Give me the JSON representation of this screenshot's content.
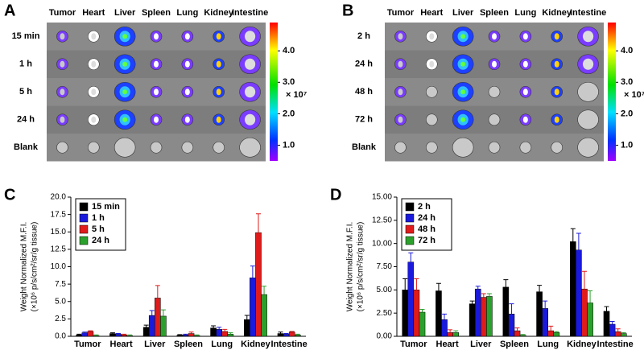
{
  "panels": [
    {
      "label": "A",
      "columns": [
        "Tumor",
        "Heart",
        "Liver",
        "Spleen",
        "Lung",
        "Kidney",
        "Intestine"
      ],
      "rows": [
        "15 min",
        "1 h",
        "5 h",
        "24 h",
        "Blank"
      ],
      "clim": [
        0.5,
        4.9
      ],
      "colorbar_ticks": [
        {
          "value": 4,
          "label": "4.0"
        },
        {
          "value": 3,
          "label": "3.0"
        },
        {
          "value": 2,
          "label": "2.0"
        },
        {
          "value": 1,
          "label": "1.0"
        }
      ],
      "colorbar_unit": "× 10⁷"
    },
    {
      "label": "B",
      "columns": [
        "Tumor",
        "Heart",
        "Liver",
        "Spleen",
        "Lung",
        "Kidney",
        "Intestine"
      ],
      "rows": [
        "2 h",
        "24 h",
        "48 h",
        "72 h",
        "Blank"
      ],
      "clim": [
        0.5,
        4.9
      ],
      "colorbar_ticks": [
        {
          "value": 4,
          "label": "4.0"
        },
        {
          "value": 3,
          "label": "3.0"
        },
        {
          "value": 2,
          "label": "2.0"
        },
        {
          "value": 1,
          "label": "1.0"
        }
      ],
      "colorbar_unit": "× 10⁷"
    }
  ],
  "chart_data": [
    {
      "type": "bar",
      "panel_label": "C",
      "y_label": [
        "Weight Normalized M.F.I.",
        "(×10⁶ p/s/cm²/sr/g tissue)"
      ],
      "categories": [
        "Tumor",
        "Heart",
        "Liver",
        "Spleen",
        "Lung",
        "Kidney",
        "Intestine"
      ],
      "ylim": [
        0,
        20
      ],
      "yticks": [
        {
          "value": 0,
          "label": "0.0"
        },
        2.5,
        {
          "value": 5,
          "label": "5.0"
        },
        7.5,
        {
          "value": 10,
          "label": "10.0"
        },
        12.5,
        {
          "value": 15,
          "label": "15.0"
        },
        17.5,
        {
          "value": 20,
          "label": "20.0"
        }
      ],
      "legend": "upper left",
      "series": [
        {
          "name": "15 min",
          "color": "#000000",
          "values": [
            0.2,
            0.4,
            1.3,
            0.15,
            1.2,
            2.4,
            0.4
          ],
          "errors": [
            0.1,
            0.1,
            0.3,
            0.1,
            0.3,
            0.6,
            0.2
          ]
        },
        {
          "name": "1 h",
          "color": "#1a1adc",
          "values": [
            0.5,
            0.3,
            3.0,
            0.2,
            1.0,
            8.4,
            0.3
          ],
          "errors": [
            0.1,
            0.1,
            0.7,
            0.1,
            0.3,
            1.7,
            0.1
          ]
        },
        {
          "name": "5 h",
          "color": "#e01b1b",
          "values": [
            0.7,
            0.2,
            5.5,
            0.4,
            0.7,
            14.9,
            0.6
          ],
          "errors": [
            0.1,
            0.1,
            1.8,
            0.2,
            0.3,
            2.7,
            0.1
          ]
        },
        {
          "name": "24 h",
          "color": "#2ca02c",
          "values": [
            0.1,
            0.1,
            2.9,
            0.1,
            0.3,
            6.0,
            0.2
          ],
          "errors": [
            0.1,
            0.1,
            0.9,
            0.1,
            0.2,
            1.2,
            0.1
          ]
        }
      ]
    },
    {
      "type": "bar",
      "panel_label": "D",
      "y_label": [
        "Weight Normalized M.F.I.",
        "(×10⁶ p/s/cm²/sr/g tissue)"
      ],
      "categories": [
        "Tumor",
        "Heart",
        "Liver",
        "Spleen",
        "Lung",
        "Kidney",
        "Intestine"
      ],
      "ylim": [
        0,
        15
      ],
      "yticks": [
        {
          "value": 0,
          "label": "0.00"
        },
        {
          "value": 2.5,
          "label": "2.50"
        },
        {
          "value": 5,
          "label": "5.00"
        },
        {
          "value": 7.5,
          "label": "7.50"
        },
        {
          "value": 10,
          "label": "10.00"
        },
        {
          "value": 12.5,
          "label": "12.50"
        },
        {
          "value": 15,
          "label": "15.00"
        }
      ],
      "legend": "upper left",
      "series": [
        {
          "name": "2 h",
          "color": "#000000",
          "values": [
            5.0,
            4.9,
            3.5,
            5.3,
            4.8,
            10.2,
            2.7
          ],
          "errors": [
            1.2,
            0.8,
            0.3,
            0.8,
            0.7,
            1.4,
            0.5
          ]
        },
        {
          "name": "24 h",
          "color": "#1a1adc",
          "values": [
            8.0,
            1.8,
            5.1,
            2.4,
            3.0,
            9.3,
            1.3
          ],
          "errors": [
            1.0,
            0.6,
            0.3,
            1.1,
            0.8,
            1.8,
            0.3
          ]
        },
        {
          "name": "48 h",
          "color": "#e01b1b",
          "values": [
            5.0,
            0.4,
            4.2,
            0.6,
            0.6,
            5.1,
            0.5
          ],
          "errors": [
            1.2,
            0.3,
            0.4,
            0.3,
            0.5,
            1.9,
            0.3
          ]
        },
        {
          "name": "72 h",
          "color": "#2ca02c",
          "values": [
            2.6,
            0.4,
            4.3,
            0.1,
            0.4,
            3.6,
            0.3
          ],
          "errors": [
            0.3,
            0.2,
            0.3,
            0.1,
            0.1,
            1.3,
            0.1
          ]
        }
      ]
    }
  ]
}
